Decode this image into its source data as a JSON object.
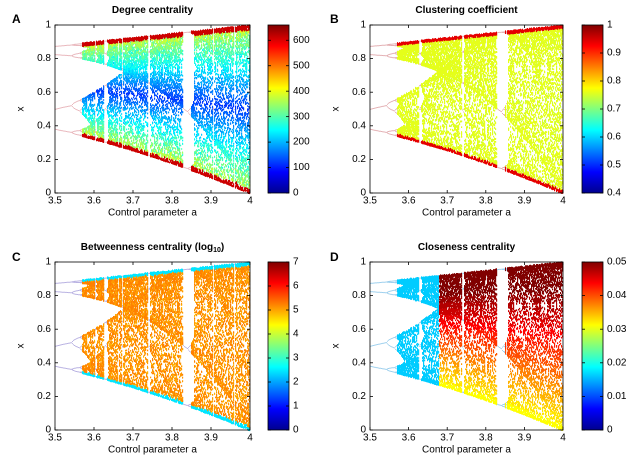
{
  "chart_data": [
    {
      "type": "bifurcation",
      "panel_label": "A",
      "title": "Degree centrality",
      "xlabel": "Control parameter a",
      "ylabel": "x",
      "xlim": [
        3.5,
        4
      ],
      "xticks": [
        3.5,
        3.6,
        3.7,
        3.8,
        3.9,
        4
      ],
      "ylim": [
        0,
        1
      ],
      "yticks": [
        0,
        0.2,
        0.4,
        0.6,
        0.8,
        1
      ],
      "colormap": "jet",
      "clim": [
        0,
        660
      ],
      "cticks": [
        0,
        100,
        200,
        300,
        400,
        500,
        600
      ]
    },
    {
      "type": "bifurcation",
      "panel_label": "B",
      "title": "Clustering coefficient",
      "xlabel": "Control parameter a",
      "ylabel": "x",
      "xlim": [
        3.5,
        4
      ],
      "xticks": [
        3.5,
        3.6,
        3.7,
        3.8,
        3.9,
        4
      ],
      "ylim": [
        0,
        1
      ],
      "yticks": [
        0,
        0.2,
        0.4,
        0.6,
        0.8,
        1
      ],
      "colormap": "jet",
      "clim": [
        0.4,
        1
      ],
      "cticks": [
        0.4,
        0.5,
        0.6,
        0.7,
        0.8,
        0.9,
        1
      ]
    },
    {
      "type": "bifurcation",
      "panel_label": "C",
      "title": "Betweenness centrality (log",
      "title_subscript": "10",
      "title_suffix": ")",
      "xlabel": "Control parameter a",
      "ylabel": "x",
      "xlim": [
        3.5,
        4
      ],
      "xticks": [
        3.5,
        3.6,
        3.7,
        3.8,
        3.9,
        4
      ],
      "ylim": [
        0,
        1
      ],
      "yticks": [
        0,
        0.2,
        0.4,
        0.6,
        0.8,
        1
      ],
      "colormap": "jet",
      "clim": [
        0,
        7
      ],
      "cticks": [
        0,
        1,
        2,
        3,
        4,
        5,
        6,
        7
      ]
    },
    {
      "type": "bifurcation",
      "panel_label": "D",
      "title": "Closeness centrality",
      "xlabel": "Control parameter a",
      "ylabel": "x",
      "xlim": [
        3.5,
        4
      ],
      "xticks": [
        3.5,
        3.6,
        3.7,
        3.8,
        3.9,
        4
      ],
      "ylim": [
        0,
        1
      ],
      "yticks": [
        0,
        0.2,
        0.4,
        0.6,
        0.8,
        1
      ],
      "colormap": "jet",
      "clim": [
        0,
        0.05
      ],
      "cticks": [
        0,
        0.01,
        0.02,
        0.03,
        0.04,
        0.05
      ]
    }
  ]
}
